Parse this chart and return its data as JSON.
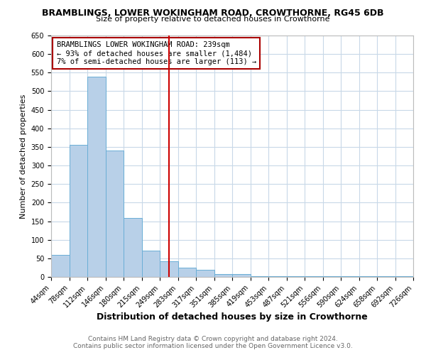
{
  "title": "BRAMBLINGS, LOWER WOKINGHAM ROAD, CROWTHORNE, RG45 6DB",
  "subtitle": "Size of property relative to detached houses in Crowthorne",
  "xlabel": "Distribution of detached houses by size in Crowthorne",
  "ylabel": "Number of detached properties",
  "bar_values": [
    60,
    355,
    540,
    340,
    158,
    70,
    42,
    25,
    20,
    8,
    8,
    2,
    1,
    1,
    1,
    1,
    1,
    1,
    1,
    1
  ],
  "bin_labels": [
    "44sqm",
    "78sqm",
    "112sqm",
    "146sqm",
    "180sqm",
    "215sqm",
    "249sqm",
    "283sqm",
    "317sqm",
    "351sqm",
    "385sqm",
    "419sqm",
    "453sqm",
    "487sqm",
    "521sqm",
    "556sqm",
    "590sqm",
    "624sqm",
    "658sqm",
    "692sqm",
    "726sqm"
  ],
  "bar_color": "#b8d0e8",
  "bar_edge_color": "#6aaed6",
  "vline_color": "#cc0000",
  "vline_index": 6.5,
  "annotation_text": "BRAMBLINGS LOWER WOKINGHAM ROAD: 239sqm\n← 93% of detached houses are smaller (1,484)\n7% of semi-detached houses are larger (113) →",
  "annotation_box_edgecolor": "#aa0000",
  "ylim": [
    0,
    650
  ],
  "yticks": [
    0,
    50,
    100,
    150,
    200,
    250,
    300,
    350,
    400,
    450,
    500,
    550,
    600,
    650
  ],
  "footer_line1": "Contains HM Land Registry data © Crown copyright and database right 2024.",
  "footer_line2": "Contains public sector information licensed under the Open Government Licence v3.0.",
  "bg_color": "#ffffff",
  "grid_color": "#c8d8e8",
  "title_fontsize": 9,
  "subtitle_fontsize": 8,
  "ylabel_fontsize": 8,
  "xlabel_fontsize": 9,
  "tick_fontsize": 7,
  "annotation_fontsize": 7.5,
  "footer_fontsize": 6.5,
  "footer_color": "#666666"
}
